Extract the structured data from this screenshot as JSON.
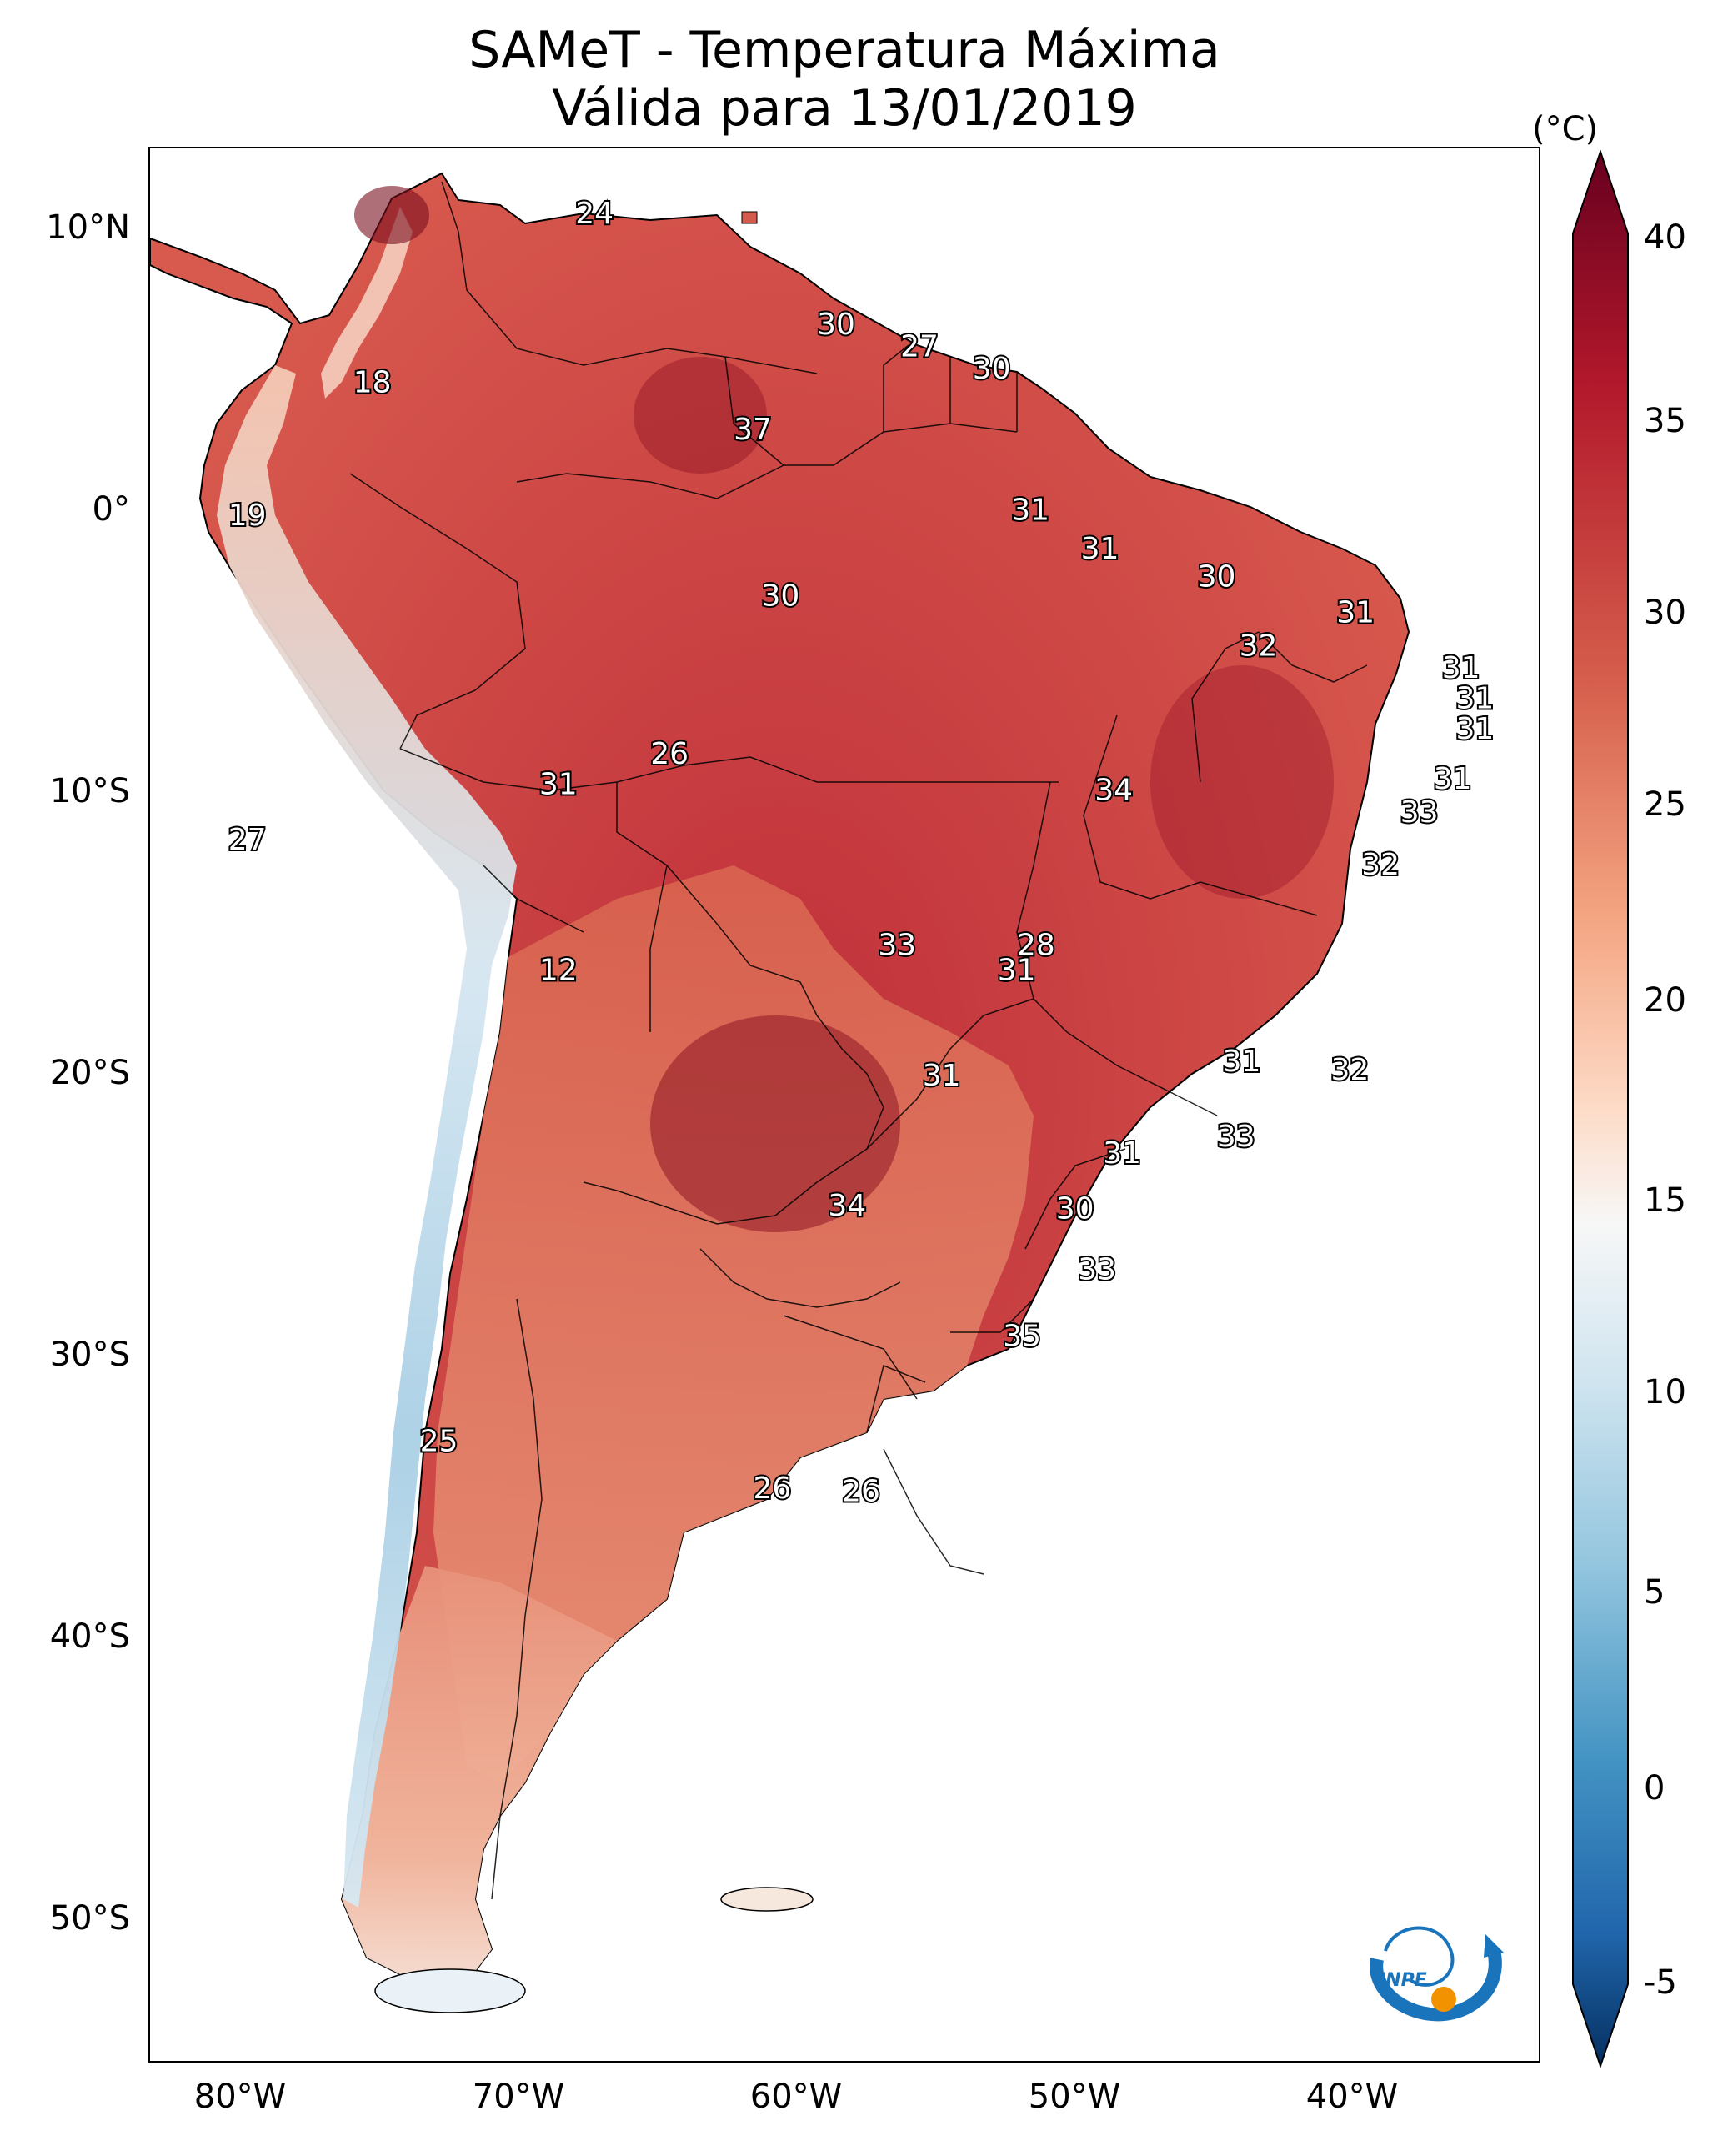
{
  "title": {
    "line1": "SAMeT - Temperatura Máxima",
    "line2": "Válida para 13/01/2019"
  },
  "colorbar": {
    "unit": "(°C)",
    "ticks": [
      "40",
      "35",
      "30",
      "25",
      "20",
      "15",
      "10",
      "5",
      "0",
      "-5"
    ],
    "tick_values": [
      40,
      35,
      30,
      25,
      20,
      15,
      10,
      5,
      0,
      -5
    ],
    "range": [
      -5,
      40
    ],
    "colormap": "RdBu_r",
    "colors": {
      "low": "#053061",
      "mid_low": "#4393c3",
      "neutral": "#f7f7f7",
      "mid_high": "#f4a582",
      "high": "#b2182b",
      "max": "#67001f"
    }
  },
  "axes": {
    "lat_ticks": [
      "10°N",
      "0°",
      "10°S",
      "20°S",
      "30°S",
      "40°S",
      "50°S"
    ],
    "lat_values": [
      10,
      0,
      -10,
      -20,
      -30,
      -40,
      -50
    ],
    "lon_ticks": [
      "80°W",
      "70°W",
      "60°W",
      "50°W",
      "40°W"
    ],
    "lon_values": [
      -80,
      -70,
      -60,
      -50,
      -40
    ],
    "lon_range": [
      -82.5,
      -32.5
    ],
    "lat_range": [
      -56,
      13
    ]
  },
  "temperature_labels": [
    {
      "text": "24",
      "lon": -66.5,
      "lat": 10.6
    },
    {
      "text": "18",
      "lon": -74.5,
      "lat": 4.5
    },
    {
      "text": "19",
      "lon": -79.0,
      "lat": -0.3
    },
    {
      "text": "30",
      "lon": -57.8,
      "lat": 6.6
    },
    {
      "text": "27",
      "lon": -54.8,
      "lat": 5.8
    },
    {
      "text": "30",
      "lon": -52.2,
      "lat": 5.0
    },
    {
      "text": "37",
      "lon": -60.8,
      "lat": 2.8
    },
    {
      "text": "31",
      "lon": -50.8,
      "lat": -0.1
    },
    {
      "text": "31",
      "lon": -48.3,
      "lat": -1.5
    },
    {
      "text": "30",
      "lon": -44.1,
      "lat": -2.5
    },
    {
      "text": "30",
      "lon": -59.8,
      "lat": -3.2
    },
    {
      "text": "31",
      "lon": -39.1,
      "lat": -3.8
    },
    {
      "text": "32",
      "lon": -42.6,
      "lat": -5.0
    },
    {
      "text": "31",
      "lon": -35.3,
      "lat": -5.8
    },
    {
      "text": "31",
      "lon": -34.8,
      "lat": -6.9
    },
    {
      "text": "31",
      "lon": -34.8,
      "lat": -8.0
    },
    {
      "text": "26",
      "lon": -63.8,
      "lat": -8.9
    },
    {
      "text": "31",
      "lon": -67.8,
      "lat": -10.0
    },
    {
      "text": "31",
      "lon": -35.6,
      "lat": -9.8
    },
    {
      "text": "34",
      "lon": -47.8,
      "lat": -10.2
    },
    {
      "text": "33",
      "lon": -36.8,
      "lat": -11.0
    },
    {
      "text": "27",
      "lon": -79.0,
      "lat": -12.0
    },
    {
      "text": "32",
      "lon": -38.2,
      "lat": -12.9
    },
    {
      "text": "33",
      "lon": -55.6,
      "lat": -15.8
    },
    {
      "text": "28",
      "lon": -50.6,
      "lat": -15.8
    },
    {
      "text": "12",
      "lon": -67.8,
      "lat": -16.7
    },
    {
      "text": "31",
      "lon": -51.3,
      "lat": -16.7
    },
    {
      "text": "31",
      "lon": -43.2,
      "lat": -20.0
    },
    {
      "text": "32",
      "lon": -39.3,
      "lat": -20.3
    },
    {
      "text": "31",
      "lon": -54.0,
      "lat": -20.5
    },
    {
      "text": "33",
      "lon": -43.4,
      "lat": -22.7
    },
    {
      "text": "31",
      "lon": -47.5,
      "lat": -23.3
    },
    {
      "text": "34",
      "lon": -57.4,
      "lat": -25.2
    },
    {
      "text": "30",
      "lon": -49.2,
      "lat": -25.3
    },
    {
      "text": "33",
      "lon": -48.4,
      "lat": -27.5
    },
    {
      "text": "35",
      "lon": -51.1,
      "lat": -29.9
    },
    {
      "text": "25",
      "lon": -72.1,
      "lat": -33.7
    },
    {
      "text": "26",
      "lon": -60.1,
      "lat": -35.4
    },
    {
      "text": "26",
      "lon": -56.9,
      "lat": -35.5
    }
  ],
  "logo": {
    "text": "INPE",
    "colors": {
      "blue": "#1a74bb",
      "orange": "#f39200"
    }
  }
}
